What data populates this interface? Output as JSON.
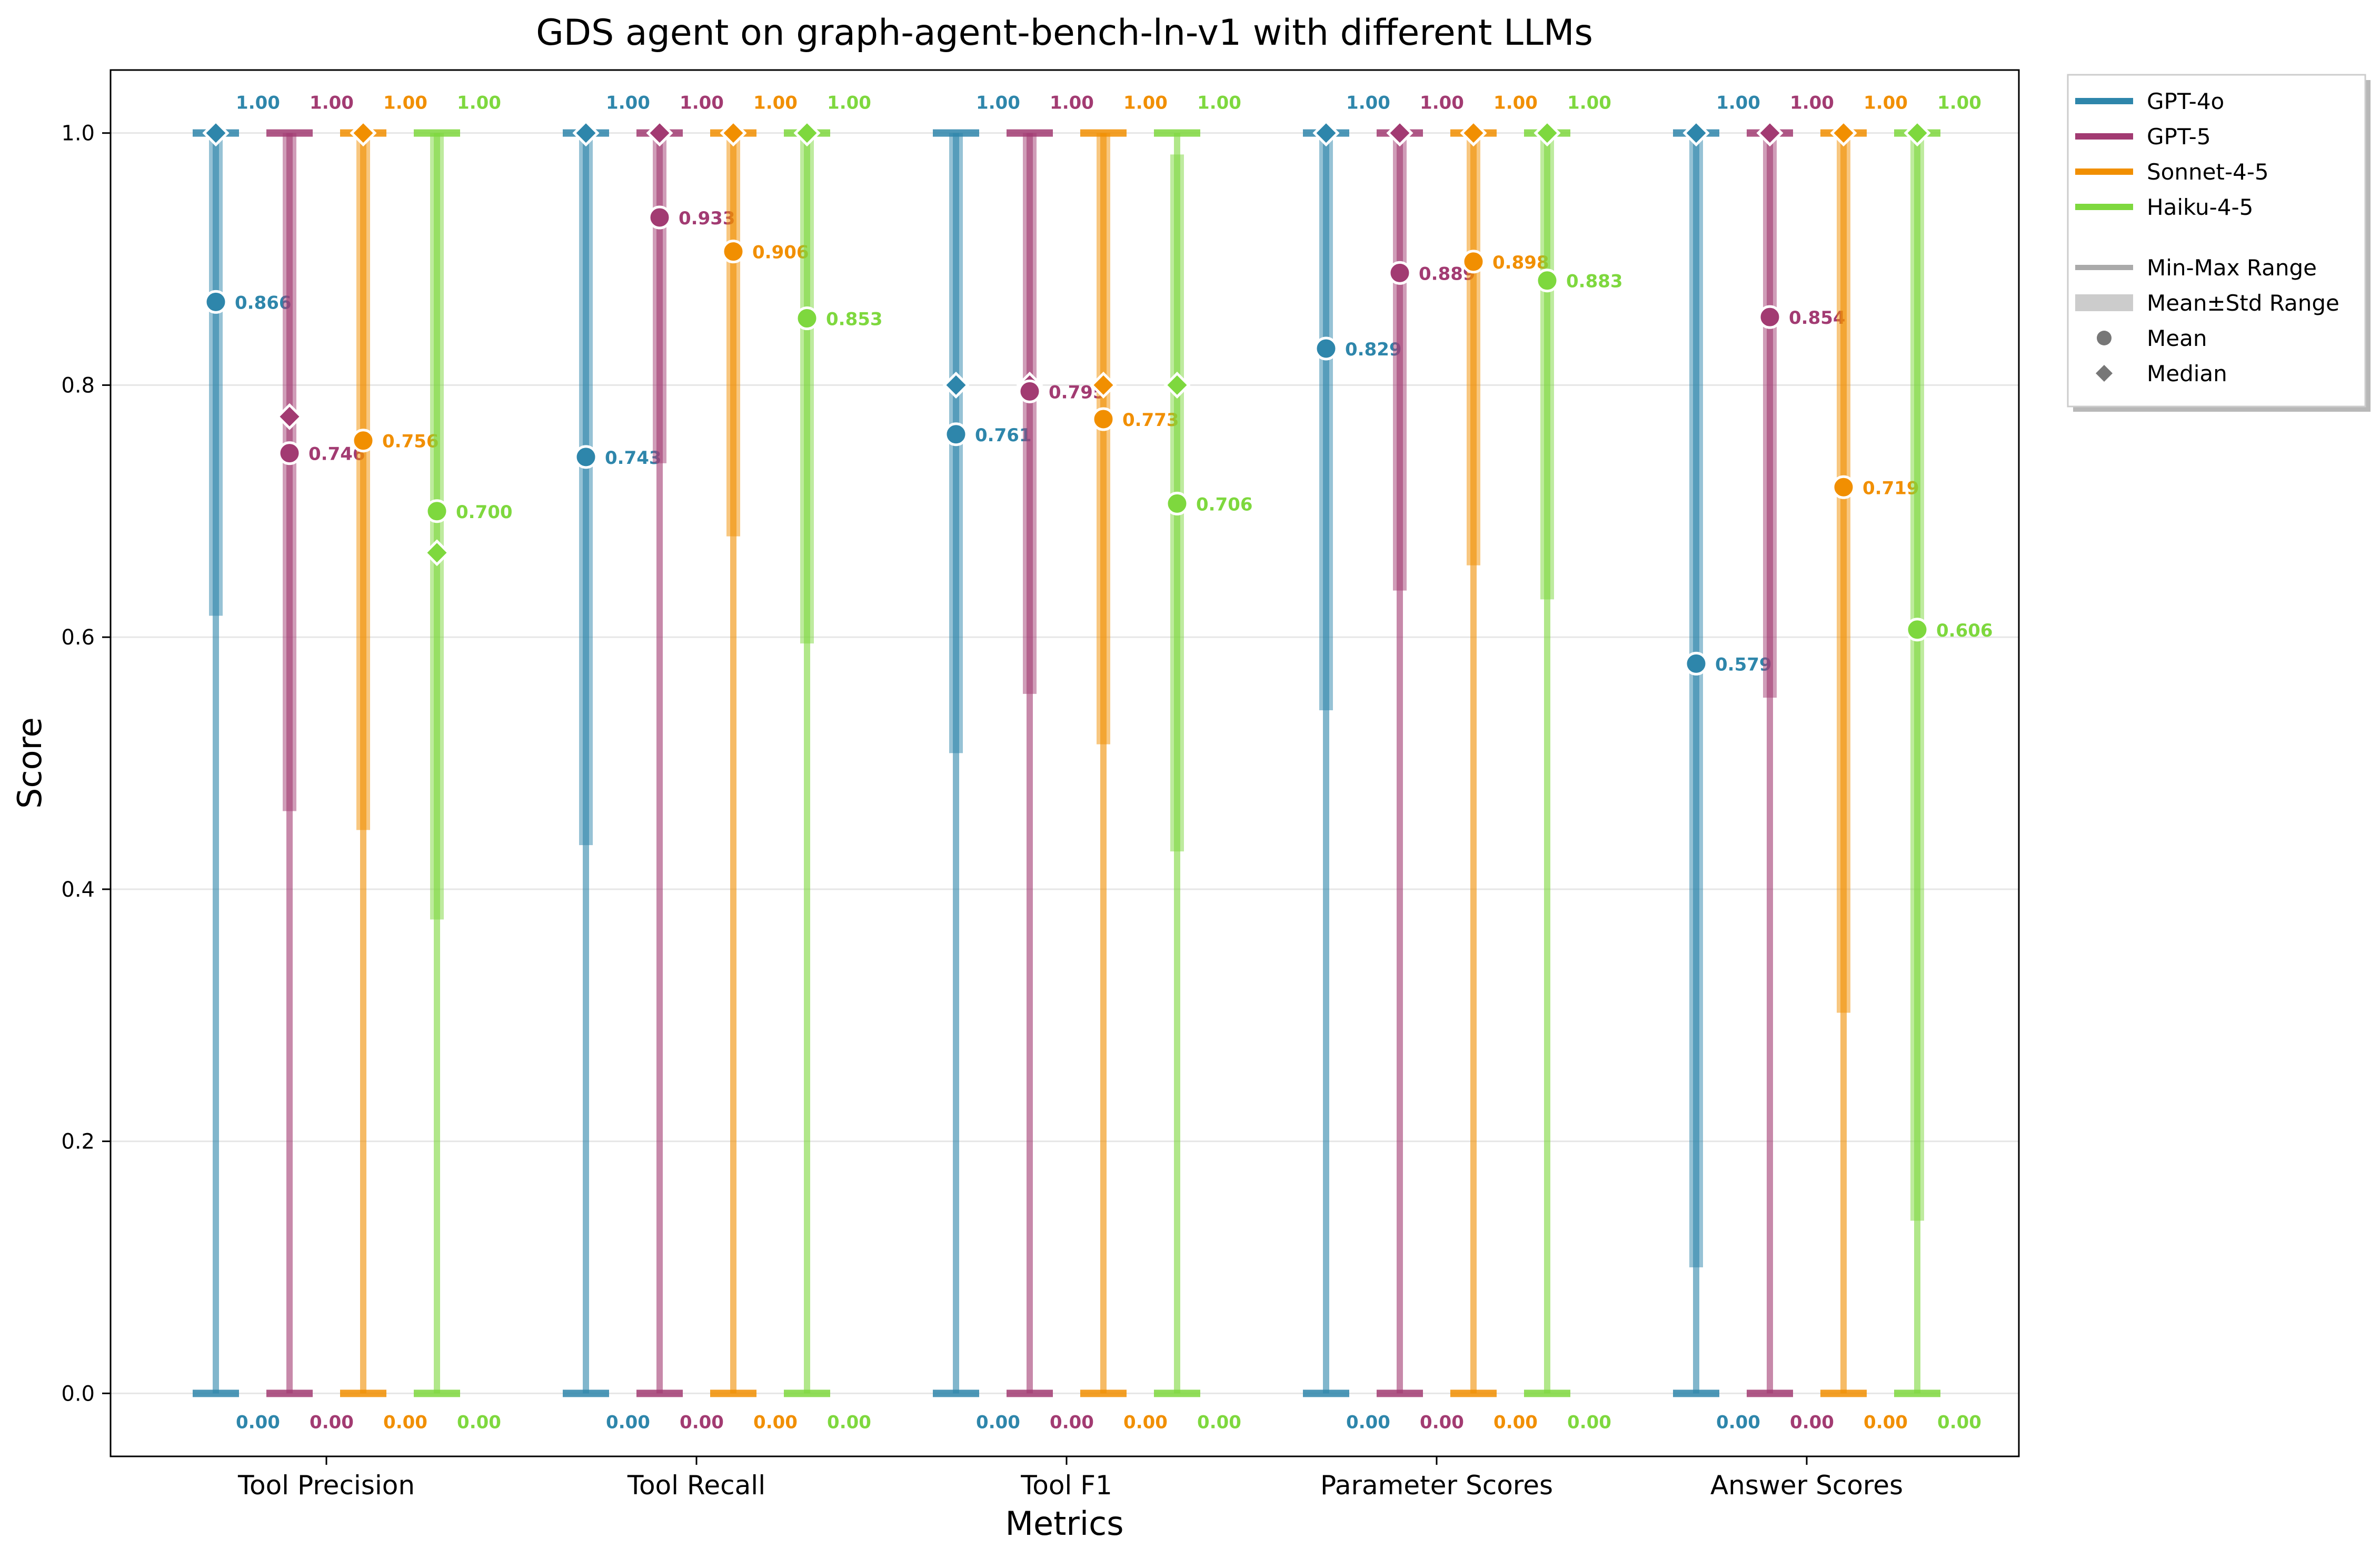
{
  "chart_data": {
    "type": "range",
    "title": "GDS agent on graph-agent-bench-ln-v1 with different LLMs",
    "xlabel": "Metrics",
    "ylabel": "Score",
    "ylim": [
      -0.05,
      1.05
    ],
    "grid": "horizontal",
    "legend_position": "outside-top-right",
    "yticks": [
      "0.0",
      "0.2",
      "0.4",
      "0.6",
      "0.8",
      "1.0"
    ],
    "categories": [
      "Tool Precision",
      "Tool Recall",
      "Tool F1",
      "Parameter Scores",
      "Answer Scores"
    ],
    "series": [
      {
        "name": "GPT-4o",
        "color": "#2E86AB",
        "min": [
          0,
          0,
          0,
          0,
          0
        ],
        "max": [
          1,
          1,
          1,
          1,
          1
        ],
        "mean": [
          0.866,
          0.743,
          0.761,
          0.829,
          0.579
        ],
        "mean_labels": [
          "0.866",
          "0.743",
          "0.761",
          "0.829",
          "0.579"
        ],
        "median": [
          1.0,
          1.0,
          0.8,
          1.0,
          1.0
        ],
        "std_low": [
          0.617,
          0.435,
          0.508,
          0.542,
          0.1
        ],
        "std_high": [
          1.0,
          1.0,
          1.0,
          1.0,
          1.0
        ]
      },
      {
        "name": "GPT-5",
        "color": "#A23B72",
        "min": [
          0,
          0,
          0,
          0,
          0
        ],
        "max": [
          1,
          1,
          1,
          1,
          1
        ],
        "mean": [
          0.746,
          0.933,
          0.795,
          0.889,
          0.854
        ],
        "mean_labels": [
          "0.746",
          "0.933",
          "0.795",
          "0.889",
          "0.854"
        ],
        "median": [
          0.775,
          1.0,
          0.8,
          1.0,
          1.0
        ],
        "std_low": [
          0.462,
          0.738,
          0.555,
          0.637,
          0.552
        ],
        "std_high": [
          1.0,
          1.0,
          1.0,
          1.0,
          1.0
        ]
      },
      {
        "name": "Sonnet-4-5",
        "color": "#F18F01",
        "min": [
          0,
          0,
          0,
          0,
          0
        ],
        "max": [
          1,
          1,
          1,
          1,
          1
        ],
        "mean": [
          0.756,
          0.906,
          0.773,
          0.898,
          0.719
        ],
        "mean_labels": [
          "0.756",
          "0.906",
          "0.773",
          "0.898",
          "0.719"
        ],
        "median": [
          1.0,
          1.0,
          0.8,
          1.0,
          1.0
        ],
        "std_low": [
          0.447,
          0.68,
          0.515,
          0.657,
          0.302
        ],
        "std_high": [
          1.0,
          1.0,
          1.0,
          1.0,
          1.0
        ]
      },
      {
        "name": "Haiku-4-5",
        "color": "#7ED83E",
        "min": [
          0,
          0,
          0,
          0,
          0
        ],
        "max": [
          1,
          1,
          1,
          1,
          1
        ],
        "mean": [
          0.7,
          0.853,
          0.706,
          0.883,
          0.606
        ],
        "mean_labels": [
          "0.700",
          "0.853",
          "0.706",
          "0.883",
          "0.606"
        ],
        "median": [
          0.667,
          1.0,
          0.8,
          1.0,
          1.0
        ],
        "std_low": [
          0.376,
          0.595,
          0.43,
          0.63,
          0.137
        ],
        "std_high": [
          1.0,
          1.0,
          0.983,
          1.0,
          1.0
        ]
      }
    ],
    "max_label": "1.00",
    "min_label": "0.00",
    "legend_extra": [
      "Min-Max Range",
      "Mean±Std Range",
      "Mean",
      "Median"
    ]
  }
}
